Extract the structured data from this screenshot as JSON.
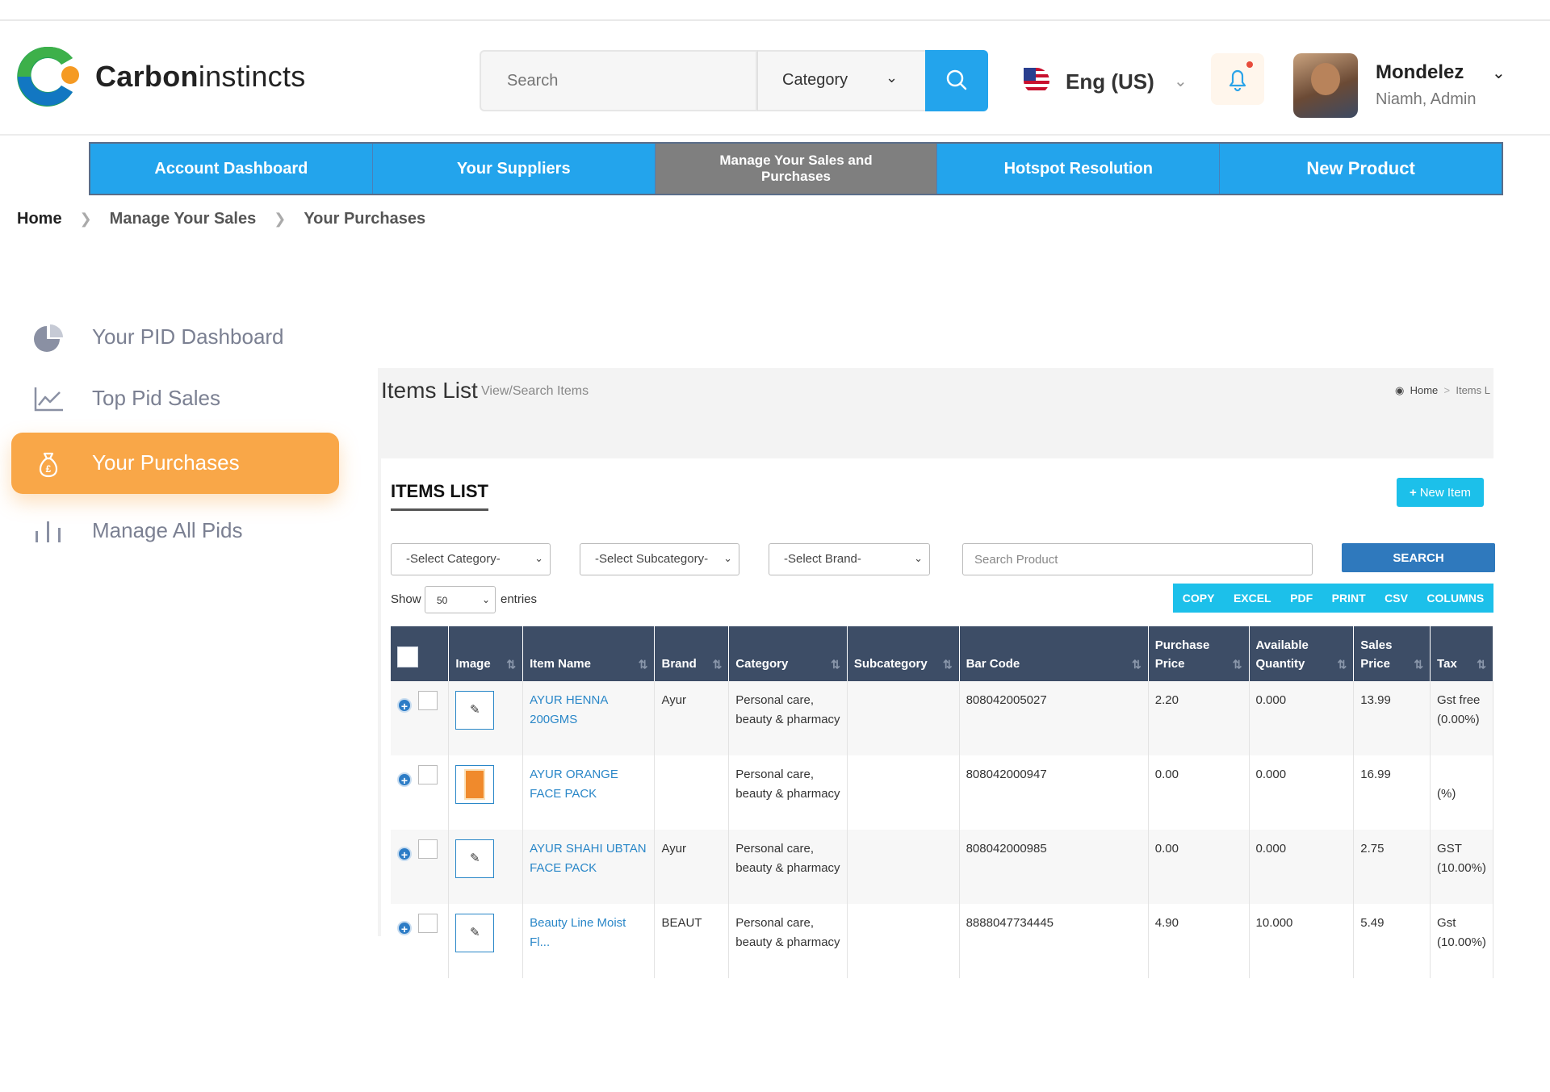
{
  "header": {
    "logo_bold": "Carbon",
    "logo_light": "instincts",
    "search_placeholder": "Search",
    "category_label": "Category",
    "language": "Eng (US)",
    "user_name": "Mondelez",
    "user_role": "Niamh, Admin"
  },
  "nav": [
    {
      "label": "Account Dashboard"
    },
    {
      "label": "Your Suppliers"
    },
    {
      "label": "Manage Your Sales and Purchases"
    },
    {
      "label": "Hotspot Resolution"
    },
    {
      "label": "New Product"
    }
  ],
  "breadcrumb": [
    "Home",
    "Manage Your Sales",
    "Your Purchases"
  ],
  "sidebar": [
    {
      "label": "Your PID Dashboard",
      "icon": "pie-chart-icon"
    },
    {
      "label": "Top Pid Sales",
      "icon": "line-chart-icon"
    },
    {
      "label": "Your Purchases",
      "icon": "money-bag-icon"
    },
    {
      "label": "Manage All Pids",
      "icon": "bar-chart-icon"
    }
  ],
  "panel": {
    "title": "Items List",
    "subtitle": "View/Search Items",
    "bc_home": "Home",
    "bc_items": "Items L",
    "card_title": "ITEMS LIST",
    "new_item": "New Item",
    "select_category": "-Select Category-",
    "select_subcategory": "-Select Subcategory-",
    "select_brand": "-Select Brand-",
    "search_product_placeholder": "Search Product",
    "search_button": "SEARCH",
    "show": "Show",
    "show_value": "50",
    "entries": "entries",
    "export_buttons": [
      "COPY",
      "EXCEL",
      "PDF",
      "PRINT",
      "CSV",
      "COLUMNS"
    ]
  },
  "table": {
    "headers": [
      "Image",
      "Item Name",
      "Brand",
      "Category",
      "Subcategory",
      "Bar Code",
      "Purchase Price",
      "Available Quantity",
      "Sales Price",
      "Tax"
    ],
    "rows": [
      {
        "name": "AYUR HENNA 200GMS",
        "brand": "Ayur",
        "category": "Personal care, beauty & pharmacy",
        "subcategory": "",
        "barcode": "808042005027",
        "purchase": "2.20",
        "qty": "0.000",
        "sales": "13.99",
        "tax": "Gst free (0.00%)"
      },
      {
        "name": "AYUR ORANGE FACE PACK",
        "brand": "",
        "category": "Personal care, beauty & pharmacy",
        "subcategory": "",
        "barcode": "808042000947",
        "purchase": "0.00",
        "qty": "0.000",
        "sales": "16.99",
        "tax": "(%)"
      },
      {
        "name": "AYUR SHAHI UBTAN FACE PACK",
        "brand": "Ayur",
        "category": "Personal care, beauty & pharmacy",
        "subcategory": "",
        "barcode": "808042000985",
        "purchase": "0.00",
        "qty": "0.000",
        "sales": "2.75",
        "tax": "GST (10.00%)"
      },
      {
        "name": "Beauty Line Moist Fl...",
        "brand": "BEAUT",
        "category": "Personal care, beauty & pharmacy",
        "subcategory": "",
        "barcode": "8888047734445",
        "purchase": "4.90",
        "qty": "10.000",
        "sales": "5.49",
        "tax": "Gst (10.00%)"
      }
    ]
  },
  "colors": {
    "accent_blue": "#23a4ec",
    "active_orange": "#f9a748",
    "table_header": "#3d4d66",
    "link": "#2a87c8"
  }
}
